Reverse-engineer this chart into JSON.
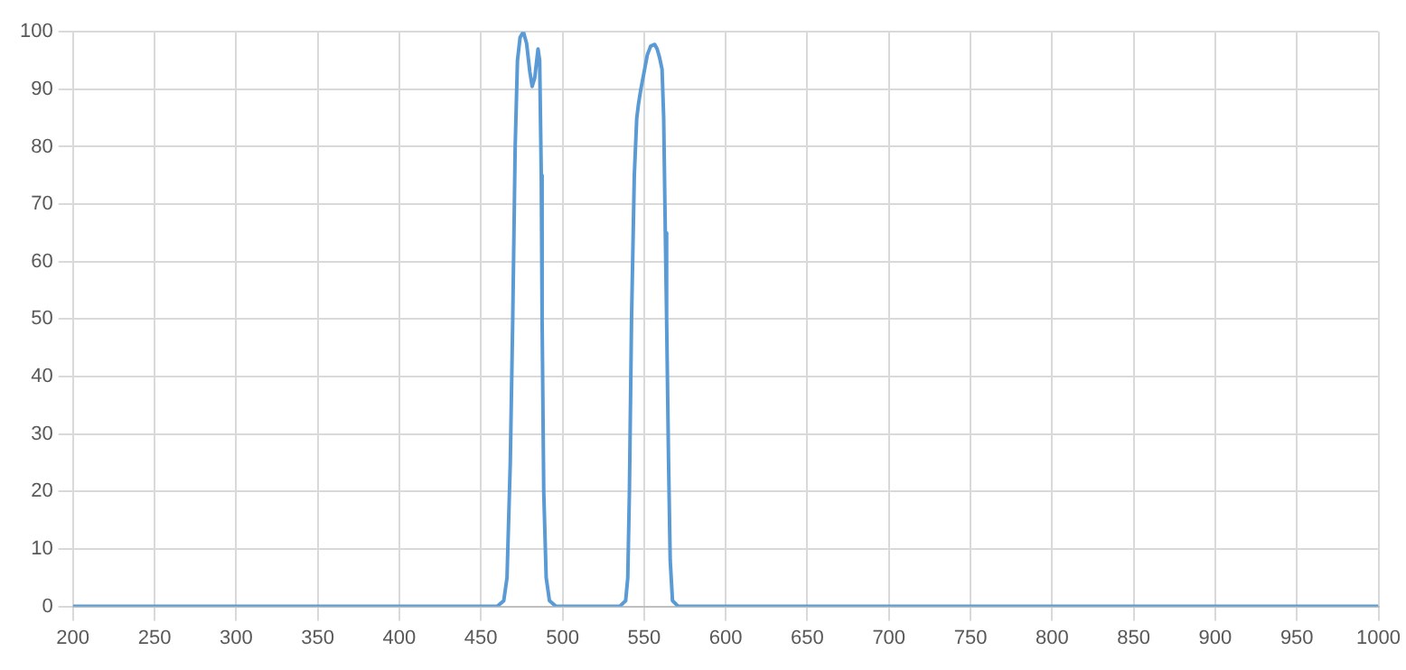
{
  "chart_data": {
    "type": "line",
    "x": [
      200,
      460,
      464,
      466,
      468,
      469.5,
      471,
      472.4,
      474,
      476,
      478,
      480,
      481.4,
      483,
      485,
      486,
      487,
      487.5,
      488.5,
      490,
      492,
      496,
      535,
      538.7,
      540,
      541,
      542.3,
      544,
      545.5,
      546.6,
      548,
      550,
      552,
      554,
      556.5,
      558,
      559.5,
      561,
      562,
      563,
      563.8,
      565,
      566,
      567.4,
      571,
      1000
    ],
    "series": [
      {
        "color": "#5b9bd5",
        "values": [
          0,
          0,
          1,
          5,
          25,
          50,
          80,
          95,
          99,
          100,
          98,
          93,
          90.5,
          92,
          97,
          95,
          75,
          50,
          20,
          5,
          1,
          0,
          0,
          1,
          5,
          20,
          50,
          75,
          85,
          87.5,
          90,
          93,
          96,
          97.5,
          97.8,
          97,
          95.5,
          93.5,
          85,
          65,
          50,
          25,
          8,
          1,
          0,
          0
        ]
      }
    ],
    "xlim": [
      200,
      1000
    ],
    "xticks": [
      200,
      250,
      300,
      350,
      400,
      450,
      500,
      550,
      600,
      650,
      700,
      750,
      800,
      850,
      900,
      950,
      1000
    ],
    "ylim": [
      0,
      100
    ],
    "yticks": [
      0,
      10,
      20,
      30,
      40,
      50,
      60,
      70,
      80,
      90,
      100
    ],
    "grid": true,
    "legend": false,
    "marker": "none",
    "line_style": "solid"
  }
}
